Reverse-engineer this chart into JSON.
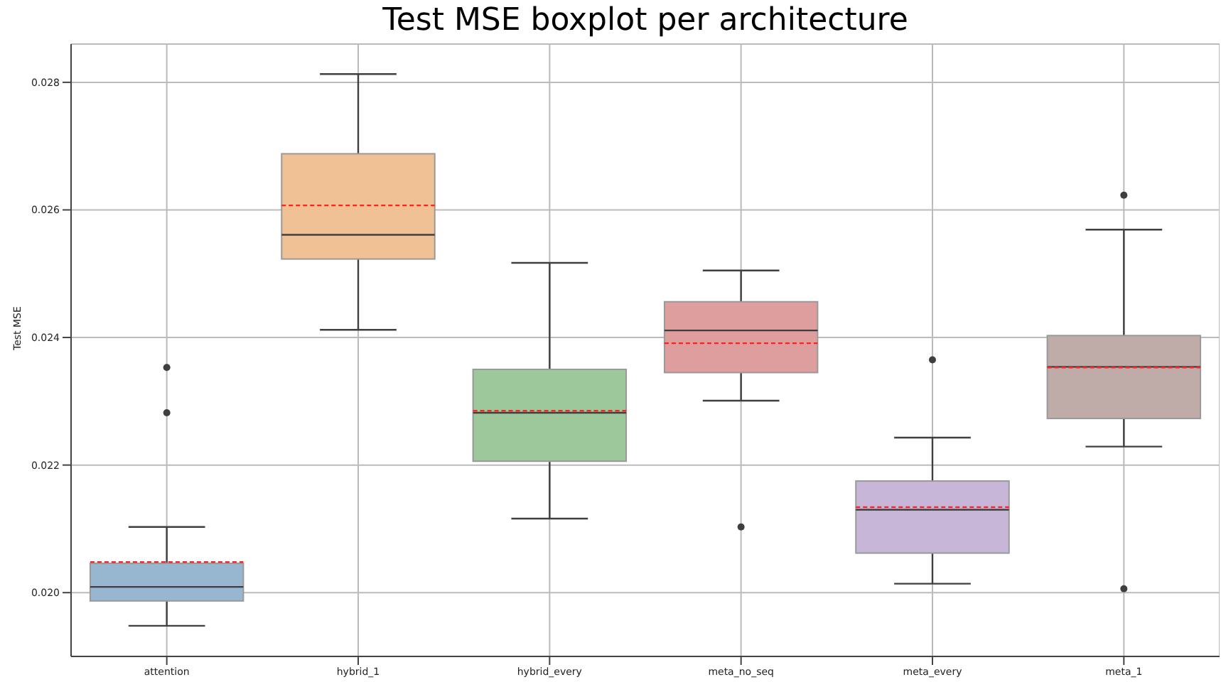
{
  "chart_data": {
    "type": "box",
    "title": "Test MSE boxplot per architecture",
    "ylabel": "Test MSE",
    "categories": [
      "attention",
      "hybrid_1",
      "hybrid_every",
      "meta_no_seq",
      "meta_every",
      "meta_1"
    ],
    "colors": [
      "#97b6d0",
      "#efc195",
      "#9cc89c",
      "#df9e9e",
      "#c8b6d8",
      "#bfaca9"
    ],
    "boxes": [
      {
        "low": 0.01948,
        "q1": 0.01987,
        "median": 0.02009,
        "q3": 0.02046,
        "high": 0.02103,
        "mean": 0.02048,
        "outliers": [
          0.02353,
          0.02282
        ]
      },
      {
        "low": 0.02412,
        "q1": 0.02523,
        "median": 0.02561,
        "q3": 0.02688,
        "high": 0.02813,
        "mean": 0.02607
      },
      {
        "low": 0.02116,
        "q1": 0.02206,
        "median": 0.02282,
        "q3": 0.0235,
        "high": 0.02517,
        "mean": 0.02285
      },
      {
        "low": 0.02301,
        "q1": 0.02345,
        "median": 0.02411,
        "q3": 0.02456,
        "high": 0.02505,
        "mean": 0.02391,
        "outliers": [
          0.02103
        ]
      },
      {
        "low": 0.02014,
        "q1": 0.02062,
        "median": 0.0213,
        "q3": 0.02175,
        "high": 0.02243,
        "mean": 0.02134,
        "outliers": [
          0.02365
        ]
      },
      {
        "low": 0.02229,
        "q1": 0.02273,
        "median": 0.02354,
        "q3": 0.02403,
        "high": 0.02569,
        "mean": 0.02353,
        "outliers": [
          0.02623,
          0.02006
        ]
      }
    ],
    "ylim": [
      0.019,
      0.0286
    ],
    "yticks": [
      {
        "value": 0.02,
        "label": "0.020"
      },
      0.022,
      0.024,
      0.026,
      0.028
    ],
    "grid": true
  }
}
